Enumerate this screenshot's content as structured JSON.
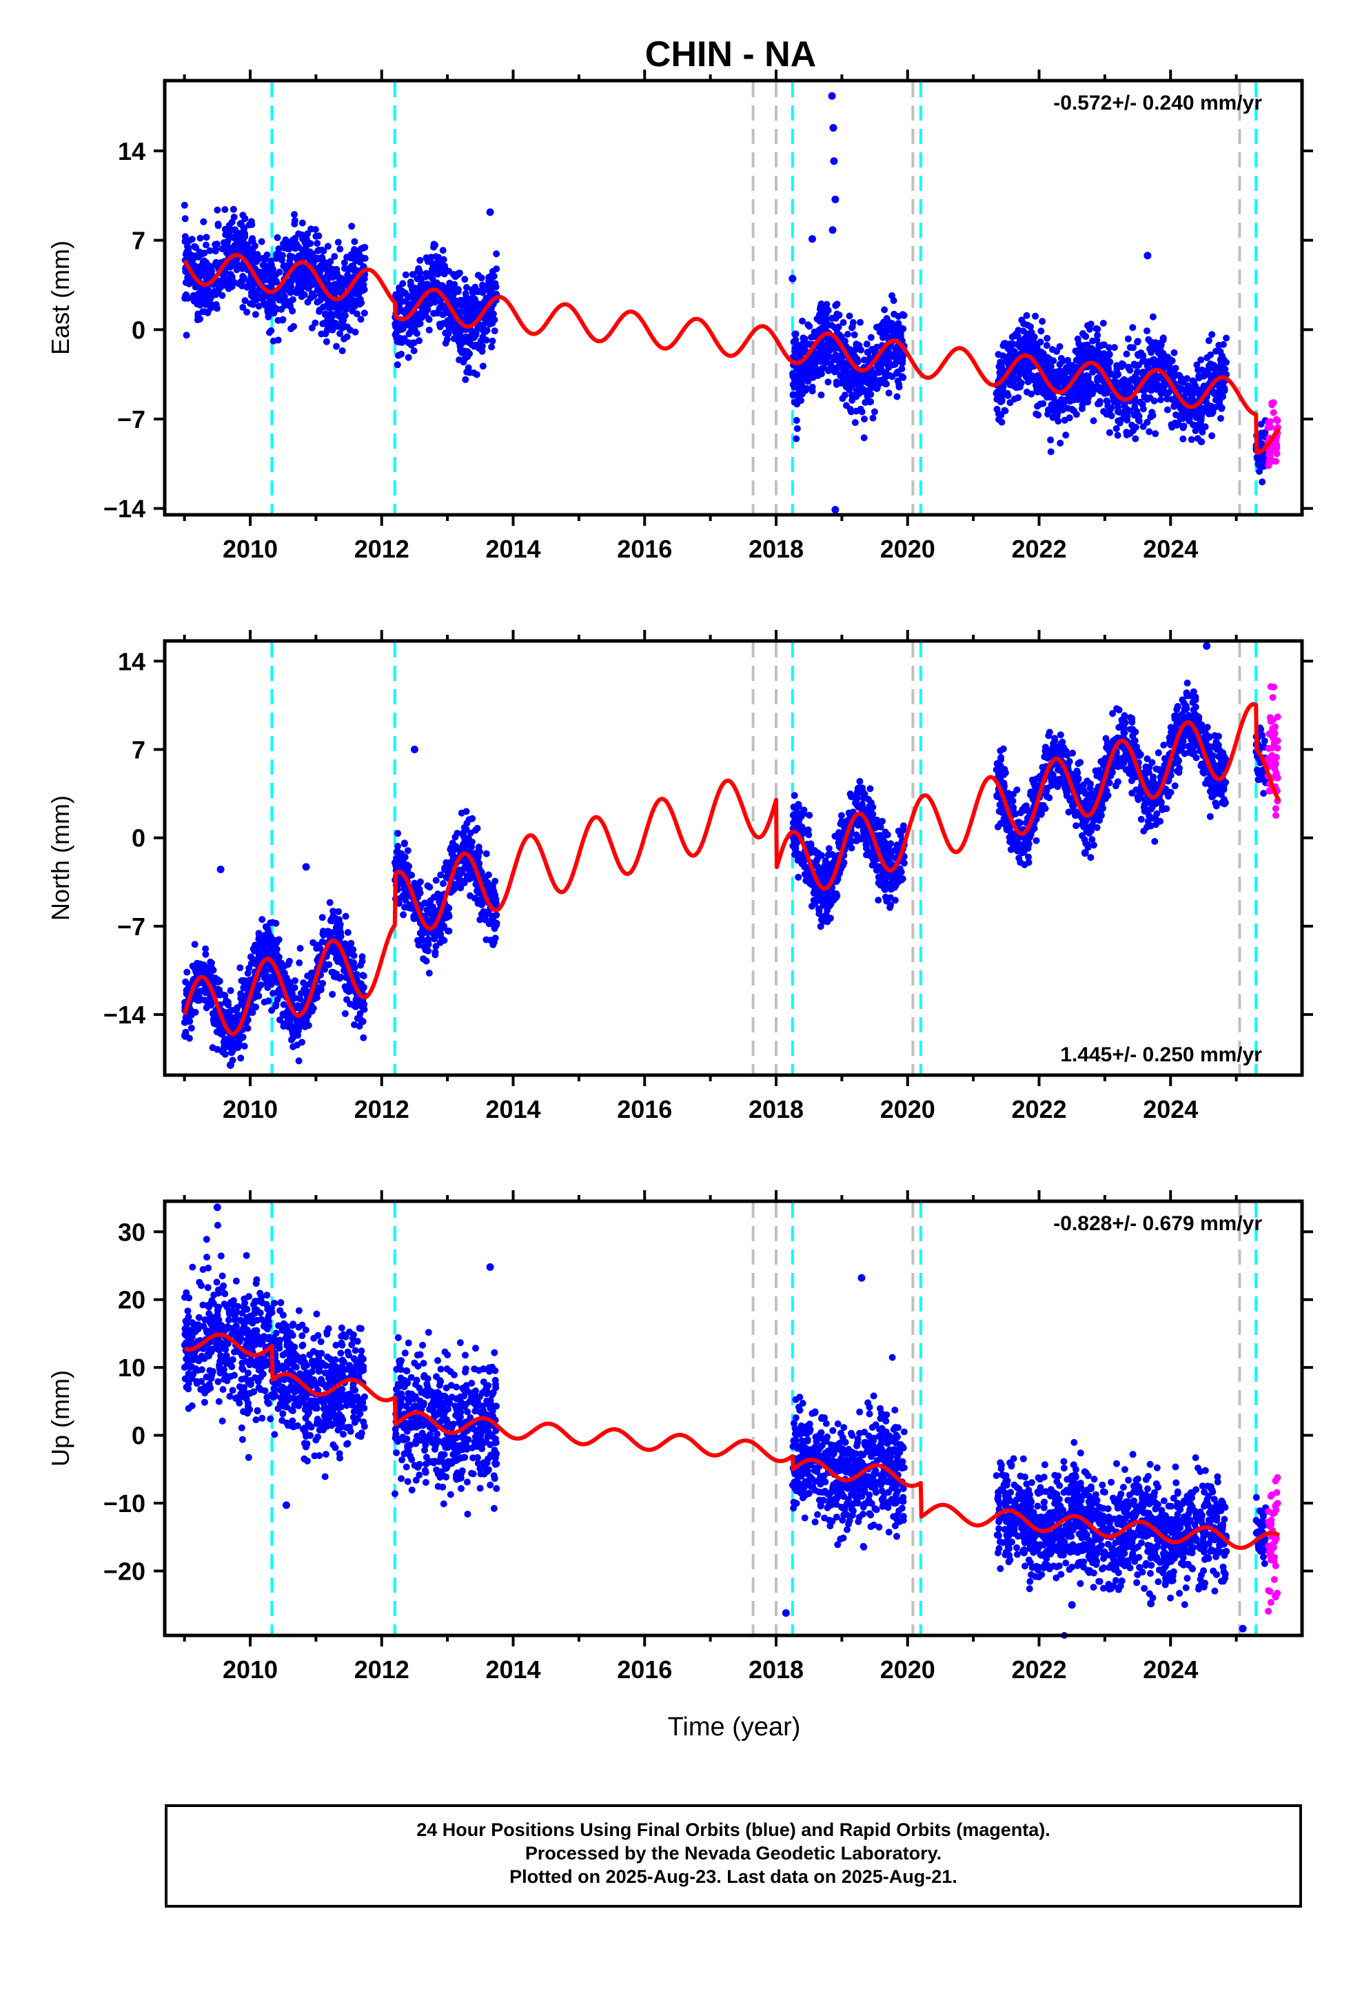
{
  "figure": {
    "title": "CHIN - NA",
    "xlabel": "Time (year)",
    "footer": [
      "24 Hour Positions Using Final Orbits (blue) and Rapid Orbits (magenta).",
      "Processed by the Nevada Geodetic Laboratory.",
      "Plotted on 2025-Aug-23. Last data on 2025-Aug-21."
    ],
    "colors": {
      "final": "#0000ff",
      "rapid": "#ff00ff",
      "model": "#ff0000",
      "equipment_change": "#00ffff",
      "earthquake": "#c0c0c0"
    }
  },
  "chart_data": [
    {
      "type": "scatter",
      "component": "East",
      "ylabel": "East (mm)",
      "rate": "-0.572+/- 0.240 mm/yr",
      "rate_position": "top-right",
      "xlim": [
        2008.7,
        2026.0
      ],
      "ylim": [
        -14.5,
        19.5
      ],
      "yticks": [
        -14,
        -7,
        0,
        7,
        14
      ],
      "xticks": [
        2010,
        2012,
        2014,
        2016,
        2018,
        2020,
        2022,
        2024
      ],
      "cyan_lines": [
        2010.33,
        2012.2,
        2018.25,
        2020.2,
        2025.3
      ],
      "gray_lines": [
        2017.65,
        2018.0,
        2020.08,
        2025.05
      ],
      "model": {
        "offset": 5.0,
        "rate": -0.572,
        "amp": 1.3,
        "phase": 0.55,
        "jumps": [
          [
            2012.2,
            -1.0
          ],
          [
            2025.3,
            -3.0
          ]
        ]
      },
      "final_segments": [
        {
          "from": 2009.0,
          "to": 2011.75,
          "n": 900,
          "noise": 1.6,
          "shift": 0.0
        },
        {
          "from": 2012.2,
          "to": 2013.75,
          "n": 500,
          "noise": 1.6,
          "shift": 0.0
        },
        {
          "from": 2018.25,
          "to": 2019.95,
          "n": 600,
          "noise": 1.6,
          "shift": -0.6
        },
        {
          "from": 2021.35,
          "to": 2024.85,
          "n": 1100,
          "noise": 1.5,
          "shift": 0.0
        },
        {
          "from": 2025.3,
          "to": 2025.45,
          "n": 40,
          "noise": 1.0,
          "shift": 0.0
        }
      ],
      "rapid_segment": {
        "from": 2025.48,
        "to": 2025.63,
        "n": 45,
        "noise": 1.2,
        "shift": 0.0
      },
      "outliers": [
        {
          "x": 2018.85,
          "y": 18.3
        },
        {
          "x": 2018.87,
          "y": 15.8
        },
        {
          "x": 2018.88,
          "y": 13.2
        },
        {
          "x": 2018.9,
          "y": 10.2
        },
        {
          "x": 2018.86,
          "y": 7.8
        },
        {
          "x": 2018.9,
          "y": -14.1
        },
        {
          "x": 2018.25,
          "y": 4.0
        },
        {
          "x": 2018.55,
          "y": 7.1
        },
        {
          "x": 2023.65,
          "y": 5.8
        },
        {
          "x": 2013.65,
          "y": 9.2
        }
      ]
    },
    {
      "type": "scatter",
      "component": "North",
      "ylabel": "North (mm)",
      "rate": "1.445+/- 0.250 mm/yr",
      "rate_position": "bottom-right",
      "xlim": [
        2008.7,
        2026.0
      ],
      "ylim": [
        -18.8,
        15.6
      ],
      "yticks": [
        -14,
        -7,
        0,
        7,
        14
      ],
      "xticks": [
        2010,
        2012,
        2014,
        2016,
        2018,
        2020,
        2022,
        2024
      ],
      "cyan_lines": [
        2010.33,
        2012.2,
        2018.25,
        2020.2,
        2025.3
      ],
      "gray_lines": [
        2017.65,
        2018.0,
        2020.08,
        2025.05
      ],
      "model": {
        "offset": -14.0,
        "rate": 1.445,
        "amp": 2.6,
        "phase": 0.0,
        "jumps": [
          [
            2012.2,
            4.0
          ],
          [
            2018.0,
            -5.5
          ],
          [
            2025.3,
            -3.5
          ]
        ]
      },
      "final_segments": [
        {
          "from": 2009.0,
          "to": 2011.75,
          "n": 900,
          "noise": 1.4,
          "shift": 0.0
        },
        {
          "from": 2012.2,
          "to": 2013.75,
          "n": 500,
          "noise": 1.3,
          "shift": 0.0
        },
        {
          "from": 2018.25,
          "to": 2019.95,
          "n": 600,
          "noise": 1.3,
          "shift": 0.0
        },
        {
          "from": 2021.35,
          "to": 2024.85,
          "n": 1100,
          "noise": 1.3,
          "shift": 0.0
        },
        {
          "from": 2025.3,
          "to": 2025.45,
          "n": 40,
          "noise": 1.0,
          "shift": 0.0
        }
      ],
      "rapid_segment": {
        "from": 2025.48,
        "to": 2025.63,
        "n": 45,
        "noise": 2.0,
        "shift": 2.5
      },
      "outliers": [
        {
          "x": 2009.55,
          "y": -2.5
        },
        {
          "x": 2010.85,
          "y": -2.3
        },
        {
          "x": 2012.5,
          "y": 7.0
        },
        {
          "x": 2009.7,
          "y": -18.0
        },
        {
          "x": 2024.55,
          "y": 15.2
        },
        {
          "x": 2022.7,
          "y": -1.2
        }
      ]
    },
    {
      "type": "scatter",
      "component": "Up",
      "ylabel": "Up (mm)",
      "rate": "-0.828+/- 0.679 mm/yr",
      "rate_position": "top-right",
      "xlim": [
        2008.7,
        2026.0
      ],
      "ylim": [
        -29.5,
        34.5
      ],
      "yticks": [
        -20,
        -10,
        0,
        10,
        20,
        30
      ],
      "xticks": [
        2010,
        2012,
        2014,
        2016,
        2018,
        2020,
        2022,
        2024
      ],
      "cyan_lines": [
        2010.33,
        2012.2,
        2018.25,
        2020.2,
        2025.3
      ],
      "gray_lines": [
        2017.65,
        2018.0,
        2020.08,
        2025.05
      ],
      "model": {
        "offset": 14.0,
        "rate": -0.828,
        "amp": 1.3,
        "phase": 0.3,
        "jumps": [
          [
            2010.33,
            -5.0
          ],
          [
            2012.2,
            -4.0
          ],
          [
            2018.25,
            -2.0
          ],
          [
            2020.2,
            -5.0
          ]
        ]
      },
      "final_segments": [
        {
          "from": 2009.0,
          "to": 2011.75,
          "n": 900,
          "noise": 4.5,
          "shift": 0.0
        },
        {
          "from": 2012.2,
          "to": 2013.75,
          "n": 500,
          "noise": 4.5,
          "shift": 0.0
        },
        {
          "from": 2018.25,
          "to": 2019.95,
          "n": 600,
          "noise": 4.0,
          "shift": 0.0
        },
        {
          "from": 2021.35,
          "to": 2024.85,
          "n": 1100,
          "noise": 3.8,
          "shift": 0.0
        },
        {
          "from": 2025.3,
          "to": 2025.45,
          "n": 40,
          "noise": 2.5,
          "shift": 0.0
        }
      ],
      "rapid_segment": {
        "from": 2025.48,
        "to": 2025.63,
        "n": 45,
        "noise": 6.0,
        "shift": 0.0
      },
      "outliers": [
        {
          "x": 2009.5,
          "y": 33.6
        },
        {
          "x": 2010.55,
          "y": -10.3
        },
        {
          "x": 2013.65,
          "y": 24.8
        },
        {
          "x": 2019.3,
          "y": 23.2
        },
        {
          "x": 2018.15,
          "y": -26.2
        },
        {
          "x": 2025.1,
          "y": -28.5
        },
        {
          "x": 2022.5,
          "y": -25.0
        },
        {
          "x": 2023.7,
          "y": -24.8
        }
      ]
    }
  ]
}
